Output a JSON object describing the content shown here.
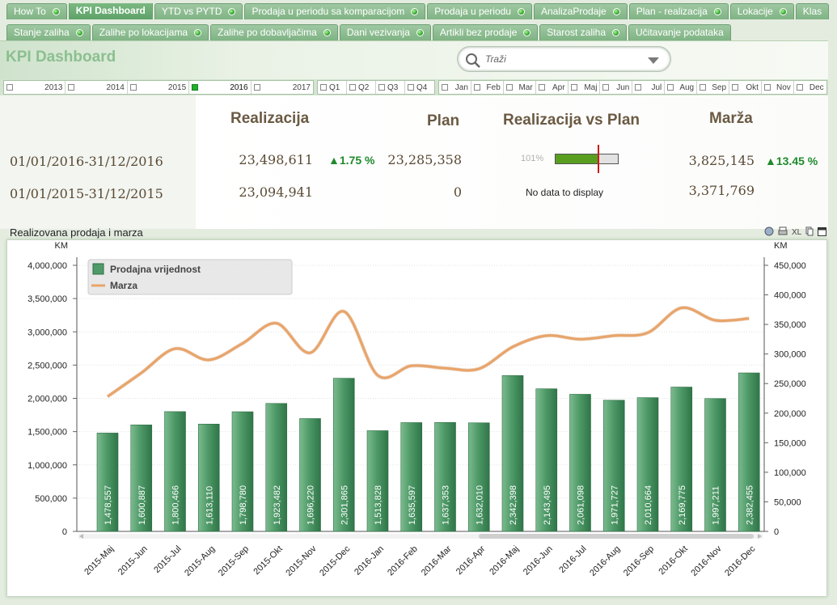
{
  "tabs_row1": [
    {
      "label": "How To",
      "led": true
    },
    {
      "label": "KPI Dashboard",
      "led": false,
      "active": true
    },
    {
      "label": "YTD vs PYTD",
      "led": true
    },
    {
      "label": "Prodaja u periodu sa komparacijom",
      "led": true
    },
    {
      "label": "Prodaja u periodu",
      "led": true
    },
    {
      "label": "AnalizaProdaje",
      "led": true
    },
    {
      "label": "Plan - realizacija",
      "led": true
    },
    {
      "label": "Lokacije",
      "led": true
    },
    {
      "label": "Klas",
      "led": false
    }
  ],
  "tabs_row2": [
    {
      "label": "Stanje zaliha",
      "led": true
    },
    {
      "label": "Zalihe po lokacijama",
      "led": true
    },
    {
      "label": "Zalihe po dobavljačima",
      "led": true
    },
    {
      "label": "Dani vezivanja",
      "led": true
    },
    {
      "label": "Artikli bez prodaje",
      "led": true
    },
    {
      "label": "Starost zaliha",
      "led": true
    },
    {
      "label": "Učitavanje podataka",
      "led": false
    }
  ],
  "page": {
    "title": "KPI Dashboard"
  },
  "search": {
    "placeholder": "Traži"
  },
  "years": [
    {
      "label": "2013",
      "selected": false
    },
    {
      "label": "2014",
      "selected": false
    },
    {
      "label": "2015",
      "selected": false
    },
    {
      "label": "2016",
      "selected": true
    },
    {
      "label": "2017",
      "selected": false
    }
  ],
  "quarters": [
    "Q1",
    "Q2",
    "Q3",
    "Q4"
  ],
  "months": [
    "Jan",
    "Feb",
    "Mar",
    "Apr",
    "Maj",
    "Jun",
    "Jul",
    "Aug",
    "Sep",
    "Okt",
    "Nov",
    "Dec"
  ],
  "kpi": {
    "headers": {
      "realizacija": "Realizacija",
      "plan": "Plan",
      "rvp": "Realizacija vs Plan",
      "marza": "Marža"
    },
    "rows": [
      {
        "period": "01/01/2016-31/12/2016",
        "realizacija": "23,498,611",
        "realizacija_change": "▲1.75 %",
        "plan": "23,285,358",
        "gauge_label": "101%",
        "gauge_value": 1.01,
        "marza": "3,825,145",
        "marza_change": "▲13.45 %"
      },
      {
        "period": "01/01/2015-31/12/2015",
        "realizacija": "23,094,941",
        "plan": "0",
        "no_data": "No data to display",
        "marza": "3,371,769"
      }
    ]
  },
  "chart": {
    "title": "Realizovana prodaja i marza",
    "tools": [
      "XL"
    ],
    "colors": {
      "bar": "#4f9a68",
      "line": "#e8a46a"
    }
  },
  "chart_data": {
    "type": "bar",
    "title": "Realizovana prodaja i marza",
    "ylabel": "KM",
    "y2label": "KM",
    "ylim": [
      0,
      4000000
    ],
    "y2lim": [
      0,
      450000
    ],
    "yticks": [
      "4,000,000",
      "3,500,000",
      "3,000,000",
      "2,500,000",
      "2,000,000",
      "1,500,000",
      "1,000,000",
      "500,000",
      "0"
    ],
    "y2ticks": [
      "450,000",
      "400,000",
      "350,000",
      "300,000",
      "250,000",
      "200,000",
      "150,000",
      "100,000",
      "50,000",
      "0"
    ],
    "grid": true,
    "legend": "top-left",
    "categories": [
      "2015-Maj",
      "2015-Jun",
      "2015-Jul",
      "2015-Aug",
      "2015-Sep",
      "2015-Okt",
      "2015-Nov",
      "2015-Dec",
      "2016-Jan",
      "2016-Feb",
      "2016-Mar",
      "2016-Apr",
      "2016-Maj",
      "2016-Jun",
      "2016-Jul",
      "2016-Aug",
      "2016-Sep",
      "2016-Okt",
      "2016-Nov",
      "2016-Dec"
    ],
    "series": [
      {
        "name": "Prodajna vrijednost",
        "type": "bar",
        "axis": "left",
        "values": [
          1478557,
          1600887,
          1800466,
          1613110,
          1798780,
          1923482,
          1696220,
          2301865,
          1513828,
          1635597,
          1637353,
          1632010,
          2342398,
          2143495,
          2061098,
          1971727,
          2010664,
          2169775,
          1997211,
          2382455
        ],
        "labels": [
          "1,478,557",
          "1,600,887",
          "1,800,466",
          "1,613,110",
          "1,798,780",
          "1,923,482",
          "1,696,220",
          "2,301,865",
          "1,513,828",
          "1,635,597",
          "1,637,353",
          "1,632,010",
          "2,342,398",
          "2,143,495",
          "2,061,098",
          "1,971,727",
          "2,010,664",
          "2,169,775",
          "1,997,211",
          "2,382,455"
        ]
      },
      {
        "name": "Marza",
        "type": "line",
        "axis": "right",
        "values": [
          228000,
          268000,
          309000,
          290000,
          318000,
          352000,
          302000,
          372000,
          264000,
          280000,
          276000,
          275000,
          312000,
          331000,
          325000,
          331000,
          336000,
          378000,
          357000,
          360000
        ]
      }
    ]
  }
}
